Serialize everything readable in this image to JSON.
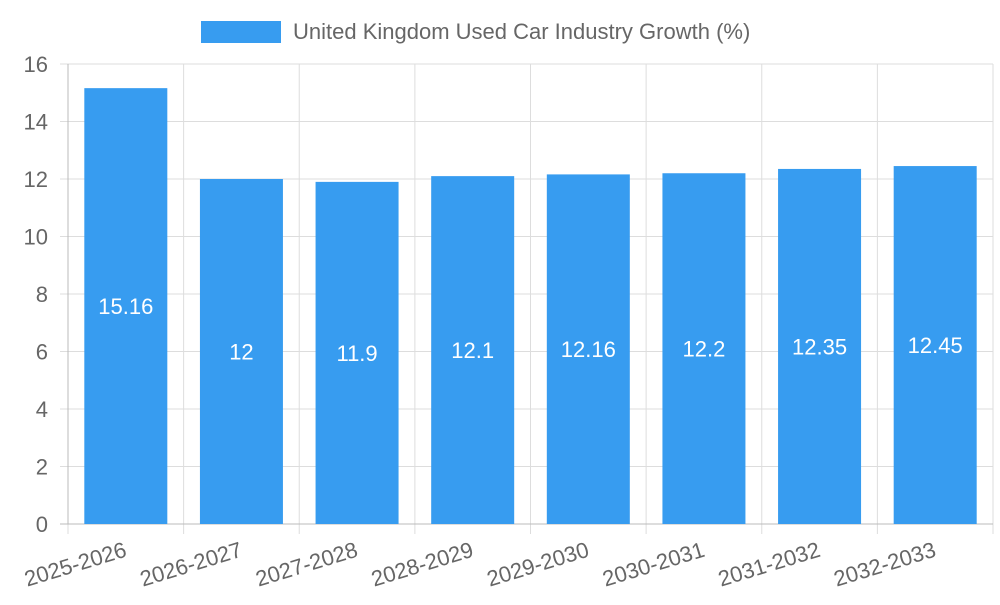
{
  "chart_data": {
    "type": "bar",
    "categories": [
      "2025-2026",
      "2026-2027",
      "2027-2028",
      "2028-2029",
      "2029-2030",
      "2030-2031",
      "2031-2032",
      "2032-2033"
    ],
    "series": [
      {
        "name": "United Kingdom Used Car Industry Growth (%)",
        "values": [
          15.16,
          12,
          11.9,
          12.1,
          12.16,
          12.2,
          12.35,
          12.45
        ]
      }
    ],
    "data_labels": [
      "15.16",
      "12",
      "11.9",
      "12.1",
      "12.16",
      "12.2",
      "12.35",
      "12.45"
    ],
    "ylim": [
      0,
      16
    ],
    "yticks": [
      "0",
      "2",
      "4",
      "6",
      "8",
      "10",
      "12",
      "14",
      "16"
    ],
    "grid": true,
    "legend_position": "top-center",
    "colors": {
      "bar": "#379cf0",
      "grid": "#dddddd",
      "axis_text": "#666666",
      "label": "#ffffff"
    }
  }
}
